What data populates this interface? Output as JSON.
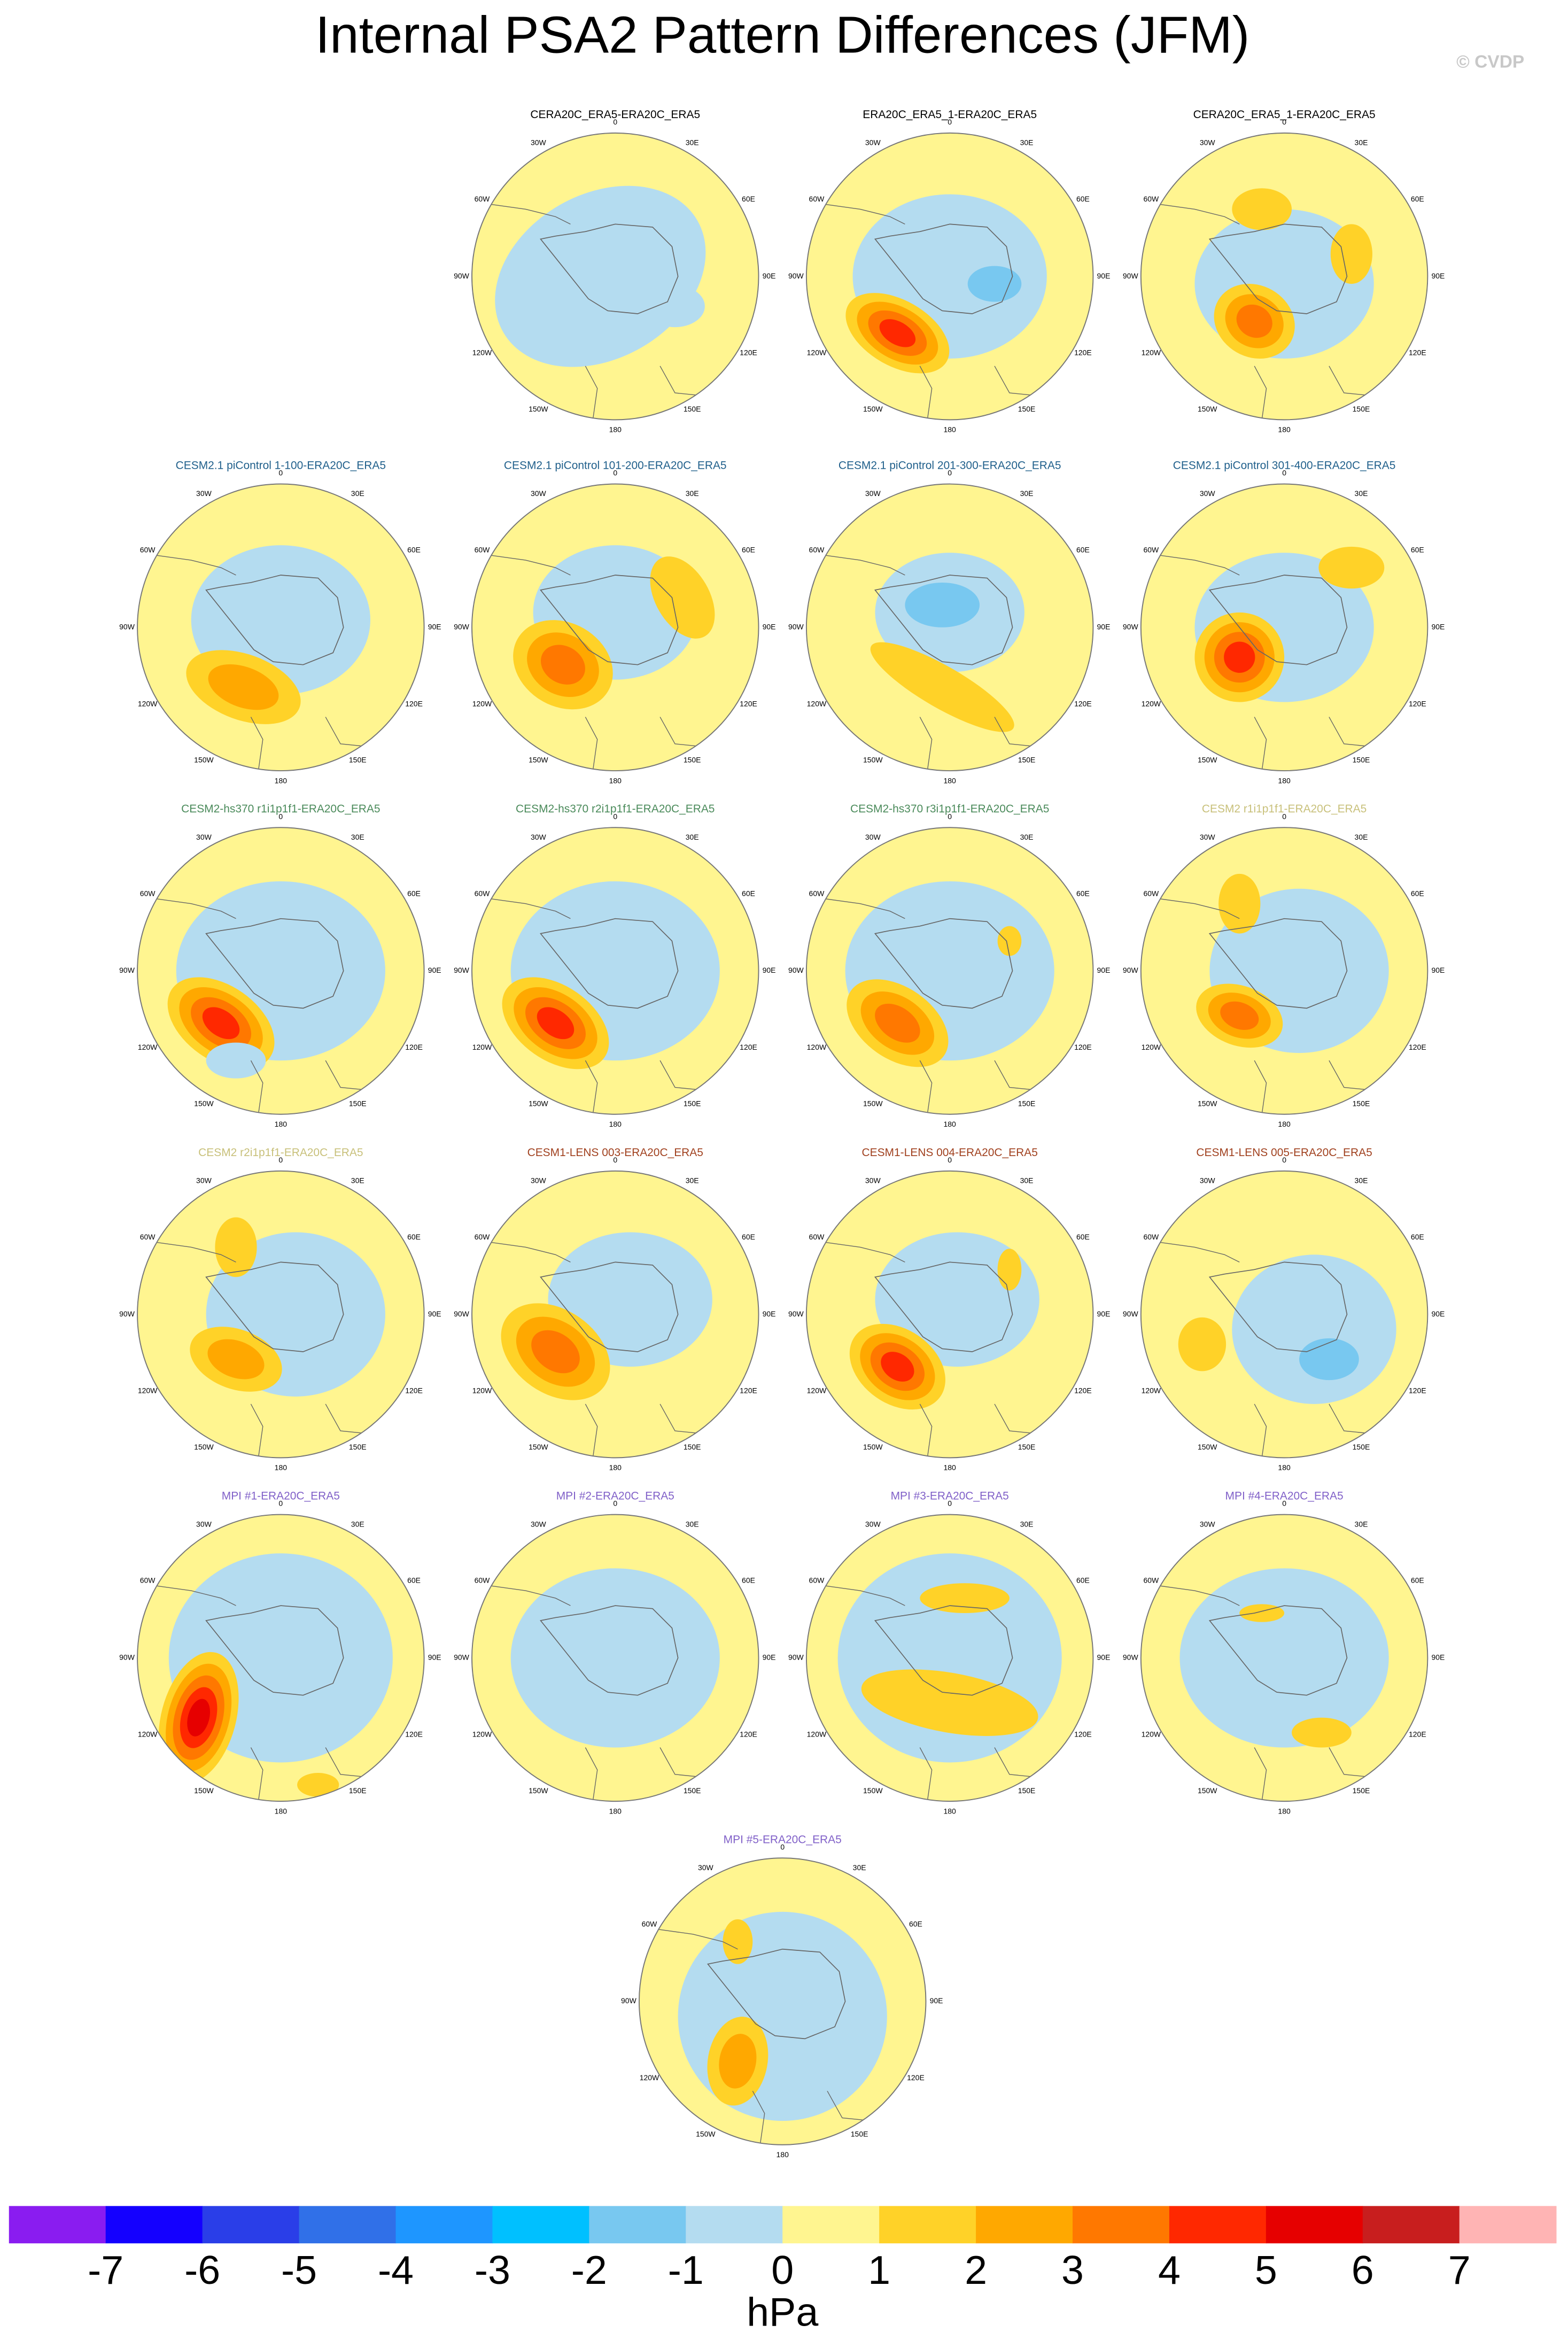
{
  "title": "Internal PSA2 Pattern Differences (JFM)",
  "copyright": "© CVDP",
  "lon_labels": [
    "0",
    "30E",
    "60E",
    "90E",
    "120E",
    "150E",
    "180",
    "150W",
    "120W",
    "90W",
    "60W",
    "30W"
  ],
  "panels": [
    {
      "title": "CERA20C_ERA5-ERA20C_ERA5",
      "color": "#000000"
    },
    {
      "title": "ERA20C_ERA5_1-ERA20C_ERA5",
      "color": "#000000"
    },
    {
      "title": "CERA20C_ERA5_1-ERA20C_ERA5",
      "color": "#000000"
    },
    {
      "title": "CESM2.1 piControl 1-100-ERA20C_ERA5",
      "color": "#1f5f8b"
    },
    {
      "title": "CESM2.1 piControl 101-200-ERA20C_ERA5",
      "color": "#1f5f8b"
    },
    {
      "title": "CESM2.1 piControl 201-300-ERA20C_ERA5",
      "color": "#1f5f8b"
    },
    {
      "title": "CESM2.1 piControl 301-400-ERA20C_ERA5",
      "color": "#1f5f8b"
    },
    {
      "title": "CESM2-hs370 r1i1p1f1-ERA20C_ERA5",
      "color": "#4a8a5a"
    },
    {
      "title": "CESM2-hs370 r2i1p1f1-ERA20C_ERA5",
      "color": "#4a8a5a"
    },
    {
      "title": "CESM2-hs370 r3i1p1f1-ERA20C_ERA5",
      "color": "#4a8a5a"
    },
    {
      "title": "CESM2 r1i1p1f1-ERA20C_ERA5",
      "color": "#c8c07a"
    },
    {
      "title": "CESM2 r2i1p1f1-ERA20C_ERA5",
      "color": "#c8c07a"
    },
    {
      "title": "CESM1-LENS 003-ERA20C_ERA5",
      "color": "#a0401e"
    },
    {
      "title": "CESM1-LENS 004-ERA20C_ERA5",
      "color": "#a0401e"
    },
    {
      "title": "CESM1-LENS 005-ERA20C_ERA5",
      "color": "#a0401e"
    },
    {
      "title": "MPI #1-ERA20C_ERA5",
      "color": "#8060c8"
    },
    {
      "title": "MPI #2-ERA20C_ERA5",
      "color": "#8060c8"
    },
    {
      "title": "MPI #3-ERA20C_ERA5",
      "color": "#8060c8"
    },
    {
      "title": "MPI #4-ERA20C_ERA5",
      "color": "#8060c8"
    },
    {
      "title": "MPI #5-ERA20C_ERA5",
      "color": "#8060c8"
    }
  ],
  "colorbar": {
    "colors": [
      "#8a1cf0",
      "#1400ff",
      "#2a3ee8",
      "#3070e8",
      "#1e96ff",
      "#00c0ff",
      "#78c8f0",
      "#b4dcf0",
      "#fff590",
      "#ffd228",
      "#ffa800",
      "#ff7800",
      "#ff2800",
      "#e60000",
      "#c81e1e",
      "#ffb4b4"
    ],
    "ticks": [
      -7,
      -6,
      -5,
      -4,
      -3,
      -2,
      -1,
      0,
      1,
      2,
      3,
      4,
      5,
      6,
      7
    ],
    "label": "hPa"
  }
}
